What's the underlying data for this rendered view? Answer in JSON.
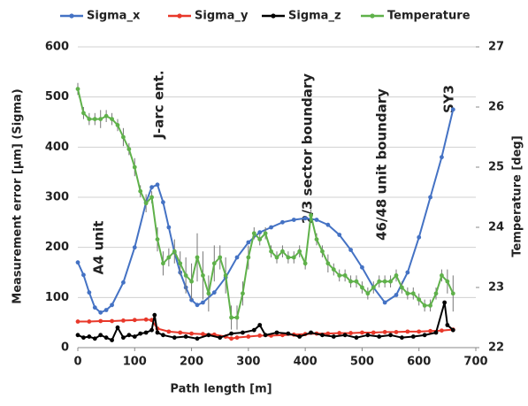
{
  "chart_data": {
    "type": "line",
    "xlabel": "Path length [m]",
    "ylabel": "Measurement error [μm] (Sigma)",
    "y2label": "Temperature [deg]",
    "xlim": [
      0,
      700
    ],
    "xticks": [
      0,
      100,
      200,
      300,
      400,
      500,
      600,
      700
    ],
    "ylim": [
      0,
      600
    ],
    "yticks": [
      0,
      100,
      200,
      300,
      400,
      500,
      600
    ],
    "y2lim": [
      22,
      27
    ],
    "y2ticks": [
      22,
      23,
      24,
      25,
      26,
      27
    ],
    "grid": true,
    "legend": "top",
    "annotations": [
      "A4 unit",
      "J-arc ent.",
      "2/3 sector boundary",
      "46/48 unit boundary",
      "SY3"
    ],
    "series": [
      {
        "name": "Sigma_x",
        "color": "#4472c4",
        "x": [
          0,
          10,
          20,
          30,
          40,
          50,
          60,
          80,
          100,
          120,
          130,
          140,
          150,
          160,
          170,
          180,
          190,
          200,
          210,
          220,
          240,
          260,
          280,
          300,
          320,
          340,
          360,
          380,
          400,
          420,
          440,
          460,
          480,
          500,
          520,
          540,
          560,
          580,
          600,
          620,
          640,
          660
        ],
        "values": [
          170,
          145,
          110,
          80,
          70,
          75,
          85,
          130,
          200,
          290,
          320,
          325,
          290,
          240,
          190,
          150,
          120,
          95,
          85,
          90,
          110,
          140,
          180,
          210,
          230,
          240,
          250,
          255,
          258,
          255,
          245,
          225,
          195,
          160,
          120,
          90,
          105,
          150,
          220,
          300,
          380,
          475
        ]
      },
      {
        "name": "Sigma_y",
        "color": "#e8382a",
        "x": [
          0,
          20,
          40,
          60,
          80,
          100,
          120,
          130,
          140,
          160,
          180,
          200,
          220,
          240,
          260,
          270,
          280,
          300,
          320,
          340,
          360,
          380,
          400,
          420,
          440,
          460,
          480,
          500,
          520,
          540,
          560,
          580,
          600,
          620,
          640,
          660
        ],
        "values": [
          52,
          52,
          53,
          53,
          54,
          55,
          56,
          55,
          38,
          32,
          30,
          28,
          27,
          26,
          22,
          18,
          20,
          22,
          24,
          24,
          25,
          26,
          27,
          28,
          28,
          29,
          29,
          30,
          30,
          31,
          31,
          32,
          32,
          33,
          34,
          36
        ]
      },
      {
        "name": "Sigma_z",
        "color": "#000000",
        "x": [
          0,
          10,
          20,
          30,
          40,
          50,
          60,
          70,
          80,
          90,
          100,
          110,
          120,
          130,
          135,
          140,
          150,
          170,
          190,
          210,
          230,
          250,
          270,
          290,
          310,
          320,
          330,
          350,
          370,
          390,
          410,
          430,
          450,
          470,
          490,
          510,
          530,
          550,
          570,
          590,
          610,
          630,
          645,
          650,
          660
        ],
        "values": [
          25,
          20,
          22,
          18,
          25,
          20,
          15,
          40,
          20,
          25,
          22,
          28,
          30,
          35,
          65,
          30,
          25,
          20,
          22,
          18,
          25,
          20,
          28,
          30,
          35,
          45,
          25,
          30,
          28,
          22,
          30,
          25,
          22,
          25,
          20,
          25,
          22,
          25,
          20,
          22,
          25,
          30,
          90,
          45,
          35
        ]
      },
      {
        "name": "Temperature",
        "color": "#5fb14a",
        "axis": "y2",
        "x": [
          0,
          10,
          20,
          30,
          40,
          50,
          60,
          70,
          80,
          90,
          100,
          110,
          120,
          130,
          140,
          150,
          160,
          170,
          180,
          190,
          200,
          210,
          220,
          230,
          240,
          250,
          260,
          270,
          280,
          290,
          300,
          310,
          320,
          330,
          340,
          350,
          360,
          370,
          380,
          390,
          400,
          410,
          420,
          430,
          440,
          450,
          460,
          470,
          480,
          490,
          500,
          510,
          520,
          530,
          540,
          550,
          560,
          570,
          580,
          590,
          600,
          610,
          620,
          630,
          640,
          650,
          660
        ],
        "values": [
          26.3,
          25.9,
          25.8,
          25.8,
          25.8,
          25.85,
          25.8,
          25.7,
          25.5,
          25.3,
          25.0,
          24.6,
          24.4,
          24.5,
          23.8,
          23.4,
          23.5,
          23.6,
          23.4,
          23.2,
          23.1,
          23.5,
          23.2,
          22.9,
          23.4,
          23.5,
          23.2,
          22.5,
          22.5,
          22.9,
          23.5,
          23.9,
          23.8,
          23.9,
          23.6,
          23.5,
          23.6,
          23.5,
          23.5,
          23.6,
          23.4,
          24.2,
          23.8,
          23.6,
          23.4,
          23.3,
          23.2,
          23.2,
          23.1,
          23.1,
          23.0,
          22.9,
          23.0,
          23.1,
          23.1,
          23.1,
          23.2,
          23.0,
          22.9,
          22.9,
          22.8,
          22.7,
          22.7,
          22.9,
          23.2,
          23.1,
          22.9
        ],
        "errors": [
          0.1,
          0.1,
          0.1,
          0.1,
          0.15,
          0.1,
          0.1,
          0.1,
          0.15,
          0.1,
          0.15,
          0.1,
          0.15,
          0.1,
          0.2,
          0.2,
          0.15,
          0.2,
          0.2,
          0.3,
          0.3,
          0.4,
          0.4,
          0.3,
          0.3,
          0.2,
          0.3,
          0.2,
          0.2,
          0.2,
          0.2,
          0.1,
          0.1,
          0.1,
          0.1,
          0.1,
          0.1,
          0.1,
          0.1,
          0.1,
          0.1,
          0.1,
          0.1,
          0.1,
          0.15,
          0.1,
          0.1,
          0.1,
          0.1,
          0.1,
          0.1,
          0.1,
          0.1,
          0.1,
          0.1,
          0.1,
          0.1,
          0.1,
          0.1,
          0.1,
          0.1,
          0.1,
          0.1,
          0.1,
          0.1,
          0.2,
          0.3
        ]
      }
    ]
  }
}
